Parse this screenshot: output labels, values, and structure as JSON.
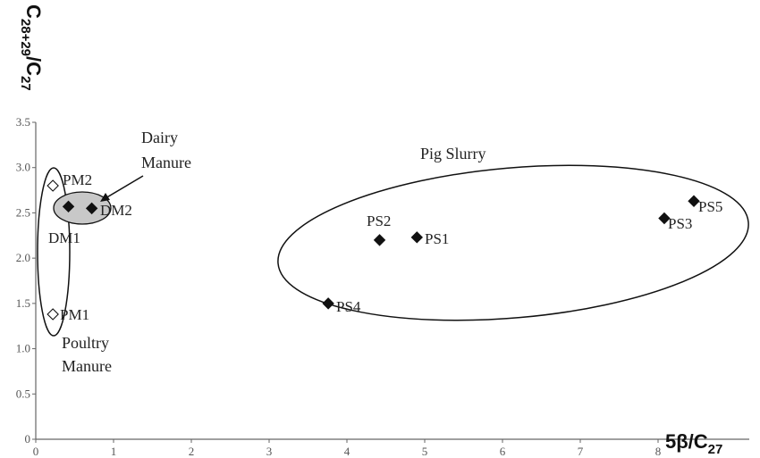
{
  "chart_data": {
    "type": "scatter",
    "xlabel": {
      "main": "5β/C",
      "sub": "27"
    },
    "ylabel": {
      "main1": "C",
      "sub1": "28+29",
      "main2": "/C",
      "sub2": "27"
    },
    "xlim": [
      0,
      8.7
    ],
    "ylim": [
      0,
      3.5
    ],
    "x_ticks": [
      "0",
      "1",
      "2",
      "3",
      "4",
      "5",
      "6",
      "7",
      "8"
    ],
    "y_ticks": [
      "0",
      "0.5",
      "1.0",
      "1.5",
      "2.0",
      "2.5",
      "3.0",
      "3.5"
    ],
    "grid": false,
    "points": [
      {
        "label": "PM2",
        "x": 0.22,
        "y": 2.8,
        "marker": "open-diamond"
      },
      {
        "label": "PM1",
        "x": 0.22,
        "y": 1.38,
        "marker": "open-diamond"
      },
      {
        "label": "DM1",
        "x": 0.42,
        "y": 2.57,
        "marker": "filled-diamond"
      },
      {
        "label": "DM2",
        "x": 0.72,
        "y": 2.55,
        "marker": "filled-diamond"
      },
      {
        "label": "PS2",
        "x": 4.42,
        "y": 2.2,
        "marker": "filled-diamond"
      },
      {
        "label": "PS1",
        "x": 4.9,
        "y": 2.23,
        "marker": "filled-diamond"
      },
      {
        "label": "PS4",
        "x": 3.76,
        "y": 1.5,
        "marker": "filled-diamond"
      },
      {
        "label": "PS3",
        "x": 8.08,
        "y": 2.44,
        "marker": "filled-diamond"
      },
      {
        "label": "PS5",
        "x": 8.46,
        "y": 2.63,
        "marker": "filled-diamond"
      }
    ],
    "groups": [
      {
        "name": "Pig Slurry"
      },
      {
        "name_line1": "Dairy",
        "name_line2": "Manure"
      },
      {
        "name_line1": "Poultry",
        "name_line2": "Manure"
      }
    ],
    "colors": {
      "marker": "#111111",
      "dairy_fill": "#c8c8c8",
      "axis": "#666666"
    }
  }
}
